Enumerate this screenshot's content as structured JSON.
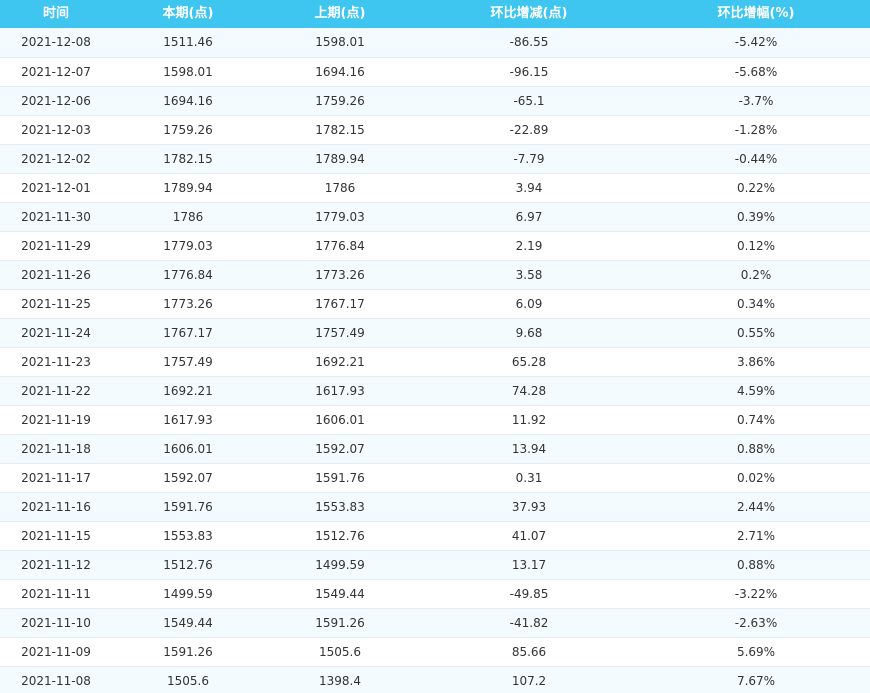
{
  "table": {
    "headers": [
      "时间",
      "本期(点)",
      "上期(点)",
      "环比增减(点)",
      "环比增幅(%)"
    ],
    "rows": [
      [
        "2021-12-08",
        "1511.46",
        "1598.01",
        "-86.55",
        "-5.42%"
      ],
      [
        "2021-12-07",
        "1598.01",
        "1694.16",
        "-96.15",
        "-5.68%"
      ],
      [
        "2021-12-06",
        "1694.16",
        "1759.26",
        "-65.1",
        "-3.7%"
      ],
      [
        "2021-12-03",
        "1759.26",
        "1782.15",
        "-22.89",
        "-1.28%"
      ],
      [
        "2021-12-02",
        "1782.15",
        "1789.94",
        "-7.79",
        "-0.44%"
      ],
      [
        "2021-12-01",
        "1789.94",
        "1786",
        "3.94",
        "0.22%"
      ],
      [
        "2021-11-30",
        "1786",
        "1779.03",
        "6.97",
        "0.39%"
      ],
      [
        "2021-11-29",
        "1779.03",
        "1776.84",
        "2.19",
        "0.12%"
      ],
      [
        "2021-11-26",
        "1776.84",
        "1773.26",
        "3.58",
        "0.2%"
      ],
      [
        "2021-11-25",
        "1773.26",
        "1767.17",
        "6.09",
        "0.34%"
      ],
      [
        "2021-11-24",
        "1767.17",
        "1757.49",
        "9.68",
        "0.55%"
      ],
      [
        "2021-11-23",
        "1757.49",
        "1692.21",
        "65.28",
        "3.86%"
      ],
      [
        "2021-11-22",
        "1692.21",
        "1617.93",
        "74.28",
        "4.59%"
      ],
      [
        "2021-11-19",
        "1617.93",
        "1606.01",
        "11.92",
        "0.74%"
      ],
      [
        "2021-11-18",
        "1606.01",
        "1592.07",
        "13.94",
        "0.88%"
      ],
      [
        "2021-11-17",
        "1592.07",
        "1591.76",
        "0.31",
        "0.02%"
      ],
      [
        "2021-11-16",
        "1591.76",
        "1553.83",
        "37.93",
        "2.44%"
      ],
      [
        "2021-11-15",
        "1553.83",
        "1512.76",
        "41.07",
        "2.71%"
      ],
      [
        "2021-11-12",
        "1512.76",
        "1499.59",
        "13.17",
        "0.88%"
      ],
      [
        "2021-11-11",
        "1499.59",
        "1549.44",
        "-49.85",
        "-3.22%"
      ],
      [
        "2021-11-10",
        "1549.44",
        "1591.26",
        "-41.82",
        "-2.63%"
      ],
      [
        "2021-11-09",
        "1591.26",
        "1505.6",
        "85.66",
        "5.69%"
      ],
      [
        "2021-11-08",
        "1505.6",
        "1398.4",
        "107.2",
        "7.67%"
      ]
    ]
  },
  "colors": {
    "header_bg": "#3ec6f1",
    "header_text": "#ffffff",
    "row_alt_bg": "#f4fbfe",
    "row_bg": "#ffffff",
    "cell_text": "#333333"
  }
}
